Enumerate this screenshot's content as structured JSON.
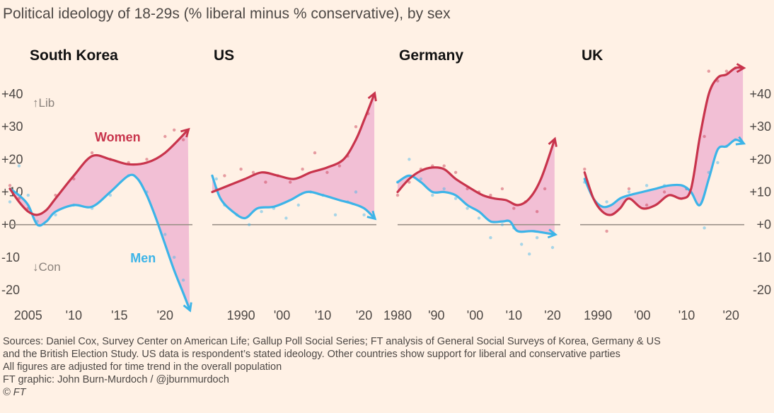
{
  "title": "Political ideology of 18-29s (% liberal minus % conservative), by sex",
  "colors": {
    "women": "#c8344c",
    "men": "#3cb4e8",
    "fill": "#f2bfd5",
    "zero": "#9a9088",
    "text": "#33302e"
  },
  "y_axis": {
    "ticks": [
      40,
      30,
      20,
      10,
      0,
      -10,
      -20
    ],
    "tick_labels": [
      "+40",
      "+30",
      "+20",
      "+10",
      "+0",
      "-10",
      "-20"
    ],
    "lib_label": "↑Lib",
    "con_label": "↓Con",
    "ylim": [
      -25,
      45
    ]
  },
  "chart_data": [
    {
      "type": "line",
      "title": "South Korea",
      "xlim": [
        2003,
        2023
      ],
      "x_ticks": [
        2005,
        2010,
        2015,
        2020
      ],
      "x_tick_labels": [
        "2005",
        "'10",
        "'15",
        "'20"
      ],
      "series": [
        {
          "name": "Women",
          "key": "women",
          "label_at": [
            2012.3,
            25.5
          ],
          "x": [
            2003,
            2004,
            2005,
            2006,
            2007,
            2008,
            2010,
            2012,
            2014,
            2016,
            2018,
            2020,
            2022.5
          ],
          "y": [
            11,
            7,
            4,
            3,
            4.5,
            8,
            15,
            21,
            20,
            18.5,
            19,
            22,
            29
          ]
        },
        {
          "name": "Men",
          "key": "men",
          "label_at": [
            2016.2,
            -11.5
          ],
          "x": [
            2003,
            2004,
            2005,
            2006,
            2007,
            2008,
            2010,
            2012,
            2014,
            2016,
            2017,
            2018,
            2019,
            2020,
            2021,
            2022,
            2022.7
          ],
          "y": [
            11,
            9,
            6,
            0,
            1,
            4,
            6,
            5.5,
            10,
            15,
            14,
            9,
            2,
            -6,
            -14,
            -21,
            -26
          ]
        }
      ],
      "points": {
        "women": [
          [
            2003,
            12
          ],
          [
            2004,
            8
          ],
          [
            2005,
            5
          ],
          [
            2008,
            9
          ],
          [
            2010,
            14
          ],
          [
            2012,
            22
          ],
          [
            2014,
            20
          ],
          [
            2016,
            19
          ],
          [
            2018,
            20
          ],
          [
            2020,
            27
          ],
          [
            2021,
            29
          ],
          [
            2022,
            26
          ]
        ],
        "men": [
          [
            2003,
            7
          ],
          [
            2004,
            18
          ],
          [
            2005,
            9
          ],
          [
            2006,
            1
          ],
          [
            2008,
            3
          ],
          [
            2010,
            6
          ],
          [
            2012,
            5
          ],
          [
            2014,
            9
          ],
          [
            2016,
            15
          ],
          [
            2018,
            10
          ],
          [
            2020,
            -3
          ],
          [
            2021,
            -10
          ],
          [
            2022,
            -17
          ]
        ]
      }
    },
    {
      "type": "line",
      "title": "US",
      "xlim": [
        1983,
        2023
      ],
      "x_ticks": [
        1990,
        2000,
        2010,
        2020
      ],
      "x_tick_labels": [
        "1990",
        "'00",
        "'10",
        "'20"
      ],
      "series": [
        {
          "name": "",
          "key": "women",
          "x": [
            1983,
            1987,
            1991,
            1995,
            1999,
            2003,
            2007,
            2011,
            2015,
            2018,
            2020,
            2022.5
          ],
          "y": [
            10,
            12,
            14,
            16,
            15,
            14,
            16,
            17.5,
            20,
            26,
            32,
            40
          ]
        },
        {
          "name": "",
          "key": "men",
          "x": [
            1983,
            1985,
            1988,
            1991,
            1994,
            1998,
            2002,
            2006,
            2010,
            2014,
            2017,
            2020,
            2022.5
          ],
          "y": [
            15,
            8,
            4,
            2,
            5,
            5.5,
            7.5,
            10,
            9,
            7.5,
            6.5,
            5,
            2
          ]
        }
      ],
      "points": {
        "women": [
          [
            1984,
            11
          ],
          [
            1986,
            15
          ],
          [
            1990,
            17
          ],
          [
            1993,
            16
          ],
          [
            1996,
            13
          ],
          [
            1999,
            15
          ],
          [
            2002,
            13
          ],
          [
            2005,
            17
          ],
          [
            2008,
            22
          ],
          [
            2011,
            16
          ],
          [
            2014,
            18
          ],
          [
            2016,
            21
          ],
          [
            2018,
            30
          ],
          [
            2021,
            34
          ]
        ],
        "men": [
          [
            1984,
            14
          ],
          [
            1986,
            6
          ],
          [
            1989,
            3
          ],
          [
            1992,
            0
          ],
          [
            1995,
            4
          ],
          [
            1998,
            5
          ],
          [
            2001,
            2
          ],
          [
            2004,
            6
          ],
          [
            2007,
            10
          ],
          [
            2010,
            9
          ],
          [
            2013,
            3
          ],
          [
            2016,
            7
          ],
          [
            2018,
            10
          ],
          [
            2020,
            3
          ]
        ]
      }
    },
    {
      "type": "line",
      "title": "Germany",
      "xlim": [
        1980,
        2022
      ],
      "x_ticks": [
        1980,
        1990,
        2000,
        2010,
        2020
      ],
      "x_tick_labels": [
        "1980",
        "'90",
        "'00",
        "'10",
        "'20"
      ],
      "series": [
        {
          "name": "",
          "key": "women",
          "x": [
            1980,
            1983,
            1986,
            1989,
            1992,
            1995,
            1999,
            2002,
            2005,
            2008,
            2011,
            2014,
            2017,
            2020.5
          ],
          "y": [
            10,
            14,
            16.5,
            17.5,
            17,
            14,
            11,
            9,
            8,
            7.5,
            6,
            8,
            14,
            26
          ]
        },
        {
          "name": "",
          "key": "men",
          "x": [
            1980,
            1983,
            1986,
            1989,
            1992,
            1995,
            1998,
            2001,
            2004,
            2007,
            2009,
            2011,
            2015,
            2020.5
          ],
          "y": [
            13,
            15,
            13,
            10,
            10,
            9,
            6,
            4,
            1,
            1,
            1,
            -2,
            -2,
            -3
          ]
        }
      ],
      "points": {
        "women": [
          [
            1980,
            9
          ],
          [
            1983,
            13
          ],
          [
            1986,
            17
          ],
          [
            1989,
            18
          ],
          [
            1992,
            18
          ],
          [
            1995,
            16
          ],
          [
            1998,
            11
          ],
          [
            2001,
            10
          ],
          [
            2004,
            9
          ],
          [
            2007,
            11
          ],
          [
            2010,
            5
          ],
          [
            2013,
            7
          ],
          [
            2016,
            4
          ],
          [
            2018,
            11
          ]
        ],
        "men": [
          [
            1980,
            13
          ],
          [
            1983,
            20
          ],
          [
            1986,
            14
          ],
          [
            1989,
            9
          ],
          [
            1992,
            11
          ],
          [
            1995,
            8
          ],
          [
            1998,
            5
          ],
          [
            2001,
            2
          ],
          [
            2004,
            -4
          ],
          [
            2007,
            0
          ],
          [
            2010,
            -1
          ],
          [
            2012,
            -6
          ],
          [
            2014,
            -9
          ],
          [
            2016,
            -4
          ],
          [
            2020,
            -7
          ]
        ]
      }
    },
    {
      "type": "line",
      "title": "UK",
      "xlim": [
        1986,
        2023
      ],
      "x_ticks": [
        1990,
        2000,
        2010,
        2020
      ],
      "x_tick_labels": [
        "1990",
        "'00",
        "'10",
        "'20"
      ],
      "series": [
        {
          "name": "",
          "key": "women",
          "x": [
            1987,
            1989,
            1991,
            1993,
            1995,
            1997,
            2000,
            2003,
            2006,
            2009,
            2011,
            2013,
            2015,
            2017,
            2019,
            2021,
            2022.7
          ],
          "y": [
            16,
            8,
            4,
            3,
            5,
            8,
            5,
            6,
            9,
            8,
            11,
            27,
            40,
            45,
            46,
            48,
            48
          ]
        },
        {
          "name": "",
          "key": "men",
          "x": [
            1987,
            1989,
            1991,
            1993,
            1995,
            1997,
            2000,
            2003,
            2006,
            2009,
            2011,
            2013,
            2015,
            2017,
            2019,
            2021,
            2022.7
          ],
          "y": [
            14,
            8,
            5.5,
            6,
            8,
            9,
            10,
            11,
            12,
            12,
            10,
            6,
            14,
            23,
            24,
            26,
            25
          ]
        }
      ],
      "points": {
        "women": [
          [
            1987,
            17
          ],
          [
            1992,
            -2
          ],
          [
            1997,
            11
          ],
          [
            2001,
            6
          ],
          [
            2005,
            10
          ],
          [
            2010,
            11
          ],
          [
            2014,
            27
          ],
          [
            2015,
            47
          ],
          [
            2017,
            44
          ],
          [
            2019,
            47
          ],
          [
            2021,
            48
          ]
        ],
        "men": [
          [
            1987,
            13
          ],
          [
            1992,
            7
          ],
          [
            1997,
            10
          ],
          [
            2001,
            12
          ],
          [
            2005,
            12
          ],
          [
            2010,
            11
          ],
          [
            2014,
            -1
          ],
          [
            2015,
            16
          ],
          [
            2017,
            19
          ],
          [
            2019,
            24
          ],
          [
            2021,
            26
          ]
        ]
      }
    }
  ],
  "footer": {
    "sources_line1": "Sources: Daniel Cox, Survey Center on American Life; Gallup Poll Social Series; FT analysis of General Social Surveys of Korea, Germany & US",
    "sources_line2": "and the British Election Study. US data is respondent’s stated ideology. Other countries show support for liberal and conservative parties",
    "note": "All figures are adjusted for time trend in the overall population",
    "credit": "FT graphic: John Burn-Murdoch / @jburnmurdoch",
    "copyright": "© FT"
  }
}
